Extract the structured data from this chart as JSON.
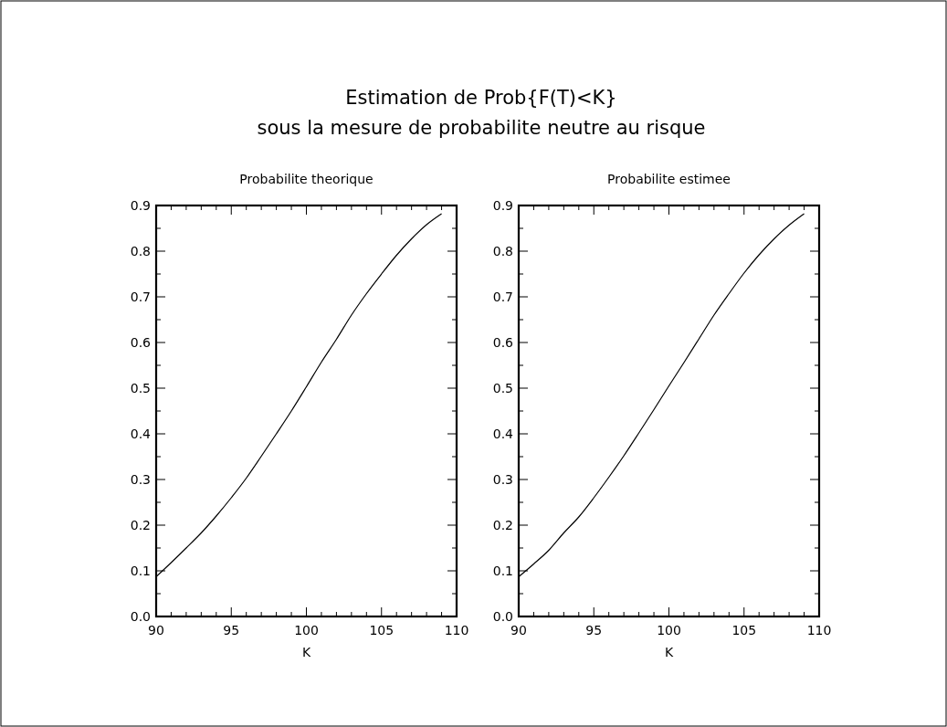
{
  "chart_data": [
    {
      "type": "line",
      "title": "Estimation de Prob{F(T)<K}\nsous la mesure de probabilite neutre au risque",
      "subtitle": "Probabilite theorique",
      "xlabel": "K",
      "x": [
        90,
        91,
        92,
        93,
        94,
        95,
        96,
        97,
        98,
        99,
        100,
        101,
        102,
        103,
        104,
        105,
        106,
        107,
        108,
        109
      ],
      "series": [
        {
          "color": "#000000",
          "values": [
            0.087,
            0.118,
            0.15,
            0.183,
            0.22,
            0.26,
            0.303,
            0.351,
            0.4,
            0.45,
            0.503,
            0.557,
            0.607,
            0.66,
            0.707,
            0.75,
            0.791,
            0.827,
            0.858,
            0.882
          ]
        }
      ],
      "xlim": [
        90,
        110
      ],
      "ylim": [
        0,
        0.9
      ],
      "xticks": [
        90,
        {
          "value": 91,
          "label": null
        },
        {
          "value": 92,
          "label": null
        },
        {
          "value": 93,
          "label": null
        },
        {
          "value": 94,
          "label": null
        },
        95,
        {
          "value": 96,
          "label": null
        },
        {
          "value": 97,
          "label": null
        },
        {
          "value": 98,
          "label": null
        },
        {
          "value": 99,
          "label": null
        },
        100,
        {
          "value": 101,
          "label": null
        },
        {
          "value": 102,
          "label": null
        },
        {
          "value": 103,
          "label": null
        },
        {
          "value": 104,
          "label": null
        },
        105,
        {
          "value": 106,
          "label": null
        },
        {
          "value": 107,
          "label": null
        },
        {
          "value": 108,
          "label": null
        },
        {
          "value": 109,
          "label": null
        },
        110
      ],
      "yticks": [
        {
          "value": 0,
          "label": "0.0"
        },
        {
          "value": 0.05,
          "label": null
        },
        0.1,
        {
          "value": 0.15,
          "label": null
        },
        0.2,
        {
          "value": 0.25,
          "label": null
        },
        0.3,
        {
          "value": 0.35,
          "label": null
        },
        0.4,
        {
          "value": 0.45,
          "label": null
        },
        0.5,
        {
          "value": 0.55,
          "label": null
        },
        0.6,
        {
          "value": 0.65,
          "label": null
        },
        0.7,
        {
          "value": 0.75,
          "label": null
        },
        0.8,
        {
          "value": 0.85,
          "label": null
        },
        0.9
      ]
    },
    {
      "type": "line",
      "subtitle": "Probabilite estimee",
      "xlabel": "K",
      "x": [
        90,
        91,
        92,
        93,
        94,
        95,
        96,
        97,
        98,
        99,
        100,
        101,
        102,
        103,
        104,
        105,
        106,
        107,
        108,
        109
      ],
      "series": [
        {
          "color": "#000000",
          "values": [
            0.087,
            0.115,
            0.145,
            0.183,
            0.218,
            0.26,
            0.305,
            0.352,
            0.402,
            0.453,
            0.505,
            0.556,
            0.608,
            0.66,
            0.707,
            0.752,
            0.792,
            0.827,
            0.857,
            0.882
          ]
        }
      ],
      "xlim": [
        90,
        110
      ],
      "ylim": [
        0,
        0.9
      ],
      "xticks": [
        90,
        {
          "value": 91,
          "label": null
        },
        {
          "value": 92,
          "label": null
        },
        {
          "value": 93,
          "label": null
        },
        {
          "value": 94,
          "label": null
        },
        95,
        {
          "value": 96,
          "label": null
        },
        {
          "value": 97,
          "label": null
        },
        {
          "value": 98,
          "label": null
        },
        {
          "value": 99,
          "label": null
        },
        100,
        {
          "value": 101,
          "label": null
        },
        {
          "value": 102,
          "label": null
        },
        {
          "value": 103,
          "label": null
        },
        {
          "value": 104,
          "label": null
        },
        105,
        {
          "value": 106,
          "label": null
        },
        {
          "value": 107,
          "label": null
        },
        {
          "value": 108,
          "label": null
        },
        {
          "value": 109,
          "label": null
        },
        110
      ],
      "yticks": [
        {
          "value": 0,
          "label": "0.0"
        },
        {
          "value": 0.05,
          "label": null
        },
        0.1,
        {
          "value": 0.15,
          "label": null
        },
        0.2,
        {
          "value": 0.25,
          "label": null
        },
        0.3,
        {
          "value": 0.35,
          "label": null
        },
        0.4,
        {
          "value": 0.45,
          "label": null
        },
        0.5,
        {
          "value": 0.55,
          "label": null
        },
        0.6,
        {
          "value": 0.65,
          "label": null
        },
        0.7,
        {
          "value": 0.75,
          "label": null
        },
        0.8,
        {
          "value": 0.85,
          "label": null
        },
        0.9
      ]
    }
  ]
}
